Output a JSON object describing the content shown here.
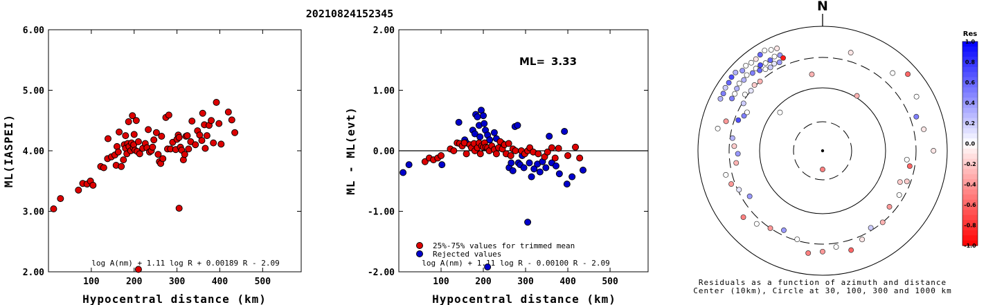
{
  "title": "20210824152345",
  "colors": {
    "accepted": "#dd0000",
    "rejected": "#0000cc",
    "edge": "#000000"
  },
  "chart_data": [
    {
      "type": "scatter",
      "xlabel": "Hypocentral distance (km)",
      "ylabel": "ML(IASPEI)",
      "xlim": [
        0,
        590
      ],
      "ylim": [
        2.0,
        6.0
      ],
      "xticks": [
        "100",
        "200",
        "300",
        "400",
        "500"
      ],
      "yticks": [
        "2.00",
        "3.00",
        "4.00",
        "5.00",
        "6.00"
      ],
      "formula": "log A(nm) + 1.11 log R + 0.00189 R - 2.09",
      "points": [
        [
          12,
          3.04
        ],
        [
          28,
          3.21
        ],
        [
          70,
          3.35
        ],
        [
          80,
          3.46
        ],
        [
          90,
          3.45
        ],
        [
          98,
          3.5
        ],
        [
          104,
          3.43
        ],
        [
          122,
          3.74
        ],
        [
          129,
          3.72
        ],
        [
          138,
          3.87
        ],
        [
          139,
          4.2
        ],
        [
          147,
          3.9
        ],
        [
          155,
          3.93
        ],
        [
          158,
          3.76
        ],
        [
          160,
          4.07
        ],
        [
          163,
          3.98
        ],
        [
          165,
          4.31
        ],
        [
          170,
          3.74
        ],
        [
          175,
          3.85
        ],
        [
          177,
          4.1
        ],
        [
          180,
          4.04
        ],
        [
          180,
          4.25
        ],
        [
          183,
          3.95
        ],
        [
          185,
          4.12
        ],
        [
          187,
          4.48
        ],
        [
          188,
          4.07
        ],
        [
          192,
          4.0
        ],
        [
          194,
          4.13
        ],
        [
          196,
          4.58
        ],
        [
          198,
          4.05
        ],
        [
          199,
          4.1
        ],
        [
          200,
          4.27
        ],
        [
          202,
          4.01
        ],
        [
          205,
          4.5
        ],
        [
          207,
          3.99
        ],
        [
          210,
          4.15
        ],
        [
          213,
          3.95
        ],
        [
          220,
          4.04
        ],
        [
          226,
          4.12
        ],
        [
          230,
          4.05
        ],
        [
          233,
          4.35
        ],
        [
          236,
          3.98
        ],
        [
          240,
          4.0
        ],
        [
          243,
          4.06
        ],
        [
          246,
          4.18
        ],
        [
          252,
          4.3
        ],
        [
          256,
          3.94
        ],
        [
          259,
          3.82
        ],
        [
          262,
          3.79
        ],
        [
          264,
          4.24
        ],
        [
          267,
          3.87
        ],
        [
          274,
          4.55
        ],
        [
          278,
          4.03
        ],
        [
          281,
          4.59
        ],
        [
          285,
          4.03
        ],
        [
          290,
          4.14
        ],
        [
          297,
          4.02
        ],
        [
          300,
          4.19
        ],
        [
          303,
          4.26
        ],
        [
          305,
          4.22
        ],
        [
          308,
          4.06
        ],
        [
          311,
          4.01
        ],
        [
          315,
          3.85
        ],
        [
          318,
          3.94
        ],
        [
          321,
          4.24
        ],
        [
          324,
          4.25
        ],
        [
          327,
          4.03
        ],
        [
          332,
          4.15
        ],
        [
          335,
          4.49
        ],
        [
          343,
          4.1
        ],
        [
          348,
          4.33
        ],
        [
          353,
          4.26
        ],
        [
          358,
          4.17
        ],
        [
          360,
          4.62
        ],
        [
          364,
          4.43
        ],
        [
          366,
          4.04
        ],
        [
          370,
          4.25
        ],
        [
          375,
          4.42
        ],
        [
          380,
          4.5
        ],
        [
          385,
          4.13
        ],
        [
          392,
          4.8
        ],
        [
          398,
          4.45
        ],
        [
          403,
          4.11
        ],
        [
          420,
          4.64
        ],
        [
          428,
          4.51
        ],
        [
          435,
          4.3
        ],
        [
          305,
          3.05
        ],
        [
          210,
          2.04
        ]
      ]
    },
    {
      "type": "scatter",
      "xlabel": "Hypocentral distance (km)",
      "ylabel": "ML - ML(evt)",
      "xlim": [
        0,
        590
      ],
      "ylim": [
        -2.0,
        2.0
      ],
      "xticks": [
        "100",
        "200",
        "300",
        "400",
        "500"
      ],
      "yticks": [
        "-2.00",
        "-1.00",
        "0.00",
        "1.00",
        "2.00"
      ],
      "ml_label": "ML=",
      "ml_value": "3.33",
      "formula": "log A(nm) + 1.11 log R - 0.00100 R - 2.09",
      "legend": [
        "25%-75% values for trimmed mean",
        "Rejected values"
      ],
      "accepted": [
        [
          62,
          -0.18
        ],
        [
          72,
          -0.12
        ],
        [
          82,
          -0.15
        ],
        [
          92,
          -0.12
        ],
        [
          100,
          -0.08
        ],
        [
          122,
          0.03
        ],
        [
          130,
          0.0
        ],
        [
          138,
          0.13
        ],
        [
          144,
          0.12
        ],
        [
          150,
          0.08
        ],
        [
          155,
          0.13
        ],
        [
          160,
          -0.05
        ],
        [
          168,
          0.1
        ],
        [
          172,
          0.05
        ],
        [
          178,
          0.12
        ],
        [
          180,
          0.0
        ],
        [
          186,
          0.05
        ],
        [
          190,
          0.13
        ],
        [
          193,
          -0.05
        ],
        [
          196,
          0.08
        ],
        [
          200,
          0.06
        ],
        [
          203,
          0.13
        ],
        [
          206,
          0.06
        ],
        [
          210,
          0.05
        ],
        [
          214,
          0.0
        ],
        [
          220,
          0.08
        ],
        [
          226,
          0.02
        ],
        [
          231,
          -0.05
        ],
        [
          236,
          0.05
        ],
        [
          240,
          0.15
        ],
        [
          245,
          0.03
        ],
        [
          250,
          0.1
        ],
        [
          254,
          -0.05
        ],
        [
          260,
          0.12
        ],
        [
          265,
          -0.08
        ],
        [
          270,
          0.03
        ],
        [
          276,
          0.0
        ],
        [
          290,
          0.0
        ],
        [
          298,
          -0.05
        ],
        [
          305,
          0.0
        ],
        [
          310,
          0.05
        ],
        [
          318,
          -0.02
        ],
        [
          330,
          -0.05
        ],
        [
          345,
          -0.1
        ],
        [
          352,
          -0.02
        ],
        [
          362,
          0.05
        ],
        [
          370,
          -0.12
        ],
        [
          378,
          0.04
        ],
        [
          400,
          -0.08
        ],
        [
          418,
          0.06
        ],
        [
          428,
          -0.12
        ]
      ],
      "rejected": [
        [
          10,
          -0.36
        ],
        [
          24,
          -0.23
        ],
        [
          102,
          -0.23
        ],
        [
          142,
          0.47
        ],
        [
          156,
          0.18
        ],
        [
          160,
          0.13
        ],
        [
          175,
          0.34
        ],
        [
          180,
          0.28
        ],
        [
          182,
          0.6
        ],
        [
          186,
          0.56
        ],
        [
          190,
          0.42
        ],
        [
          192,
          0.23
        ],
        [
          195,
          0.67
        ],
        [
          200,
          0.58
        ],
        [
          202,
          0.45
        ],
        [
          205,
          0.34
        ],
        [
          210,
          0.26
        ],
        [
          215,
          0.18
        ],
        [
          226,
          0.3
        ],
        [
          231,
          0.2
        ],
        [
          245,
          0.12
        ],
        [
          261,
          -0.28
        ],
        [
          266,
          -0.2
        ],
        [
          270,
          -0.33
        ],
        [
          275,
          0.4
        ],
        [
          281,
          0.42
        ],
        [
          283,
          -0.2
        ],
        [
          287,
          -0.23
        ],
        [
          292,
          -0.08
        ],
        [
          296,
          -0.28
        ],
        [
          305,
          -1.18
        ],
        [
          309,
          -0.2
        ],
        [
          314,
          -0.43
        ],
        [
          320,
          -0.3
        ],
        [
          328,
          -0.22
        ],
        [
          334,
          -0.35
        ],
        [
          340,
          -0.18
        ],
        [
          348,
          -0.28
        ],
        [
          356,
          0.24
        ],
        [
          362,
          -0.2
        ],
        [
          372,
          -0.25
        ],
        [
          380,
          -0.38
        ],
        [
          392,
          0.32
        ],
        [
          398,
          -0.55
        ],
        [
          410,
          -0.43
        ],
        [
          436,
          -0.32
        ],
        [
          210,
          -1.92
        ]
      ]
    },
    {
      "type": "scatter",
      "projection": "polar-azimuth-distance",
      "north_label": "N",
      "caption_line1": "Residuals as a function of azimuth and distance",
      "caption_line2": "Center (10km), Circle at 30, 100, 300 and 1000 km",
      "colorbar": {
        "title": "Res",
        "ticks": [
          "1.0",
          "0.8",
          "0.6",
          "0.4",
          "0.2",
          "0.0",
          "-0.2",
          "-0.4",
          "-0.6",
          "-0.8",
          "-1.0"
        ]
      },
      "stations": [
        [
          297,
          0.92,
          0.3
        ],
        [
          300,
          0.92,
          0.5
        ],
        [
          303,
          0.93,
          0.2
        ],
        [
          306,
          0.93,
          0.6
        ],
        [
          309,
          0.94,
          0.7
        ],
        [
          312,
          0.94,
          0.3
        ],
        [
          315,
          0.91,
          0.4
        ],
        [
          318,
          0.92,
          0.0
        ],
        [
          321,
          0.91,
          0.0
        ],
        [
          324,
          0.91,
          -0.1
        ],
        [
          327,
          0.92,
          0.6
        ],
        [
          330,
          0.93,
          0.0
        ],
        [
          333,
          0.91,
          0.0
        ],
        [
          336,
          0.9,
          -0.1
        ],
        [
          300,
          0.84,
          0.5
        ],
        [
          303,
          0.84,
          0.0
        ],
        [
          306,
          0.85,
          0.3
        ],
        [
          309,
          0.86,
          0.0
        ],
        [
          312,
          0.85,
          0.3
        ],
        [
          315,
          0.86,
          0.0
        ],
        [
          318,
          0.84,
          0.5
        ],
        [
          321,
          0.85,
          0.0
        ],
        [
          324,
          0.85,
          0.7
        ],
        [
          327,
          0.84,
          0.0
        ],
        [
          330,
          0.84,
          0.6
        ],
        [
          333,
          0.85,
          0.0
        ],
        [
          336,
          0.84,
          0.4
        ],
        [
          322,
          0.82,
          0.6
        ],
        [
          325,
          0.8,
          0.0
        ],
        [
          328,
          0.79,
          0.2
        ],
        [
          331,
          0.8,
          0.1
        ],
        [
          334,
          0.79,
          0.4
        ],
        [
          337,
          0.81,
          -0.9
        ],
        [
          306,
          0.77,
          0.0
        ],
        [
          310,
          0.75,
          0.1
        ],
        [
          314,
          0.76,
          -0.2
        ],
        [
          318,
          0.75,
          -0.3
        ],
        [
          290,
          0.72,
          0.7
        ],
        [
          294,
          0.69,
          0.5
        ],
        [
          297,
          0.68,
          0.0
        ],
        [
          301,
          0.74,
          0.2
        ],
        [
          287,
          0.81,
          -0.4
        ],
        [
          282,
          0.86,
          0.0
        ],
        [
          278,
          0.73,
          0.3
        ],
        [
          273,
          0.71,
          -0.2
        ],
        [
          268,
          0.68,
          0.4
        ],
        [
          262,
          0.7,
          -0.3
        ],
        [
          256,
          0.8,
          0.0
        ],
        [
          250,
          0.78,
          -0.4
        ],
        [
          245,
          0.74,
          0.1
        ],
        [
          238,
          0.69,
          0.4
        ],
        [
          230,
          0.83,
          -0.5
        ],
        [
          222,
          0.79,
          0.0
        ],
        [
          214,
          0.75,
          -0.4
        ],
        [
          206,
          0.71,
          0.4
        ],
        [
          196,
          0.74,
          0.0
        ],
        [
          188,
          0.83,
          -0.5
        ],
        [
          180,
          0.81,
          -0.4
        ],
        [
          172,
          0.78,
          0.0
        ],
        [
          164,
          0.83,
          -0.6
        ],
        [
          156,
          0.78,
          -0.1
        ],
        [
          148,
          0.73,
          0.2
        ],
        [
          140,
          0.75,
          -0.3
        ],
        [
          130,
          0.7,
          -0.4
        ],
        [
          120,
          0.71,
          0.0
        ],
        [
          112,
          0.67,
          -0.2
        ],
        [
          100,
          0.71,
          -0.6
        ],
        [
          90,
          0.89,
          -0.1
        ],
        [
          78,
          0.83,
          -0.1
        ],
        [
          70,
          0.8,
          0.5
        ],
        [
          60,
          0.87,
          0.0
        ],
        [
          48,
          0.92,
          -0.6
        ],
        [
          42,
          0.84,
          0.0
        ],
        [
          16,
          0.82,
          -0.1
        ],
        [
          110,
          0.72,
          -0.2
        ],
        [
          180,
          0.15,
          -0.5
        ],
        [
          32,
          0.52,
          -0.3
        ],
        [
          312,
          0.46,
          0.0
        ],
        [
          352,
          0.62,
          -0.3
        ],
        [
          96,
          0.68,
          0.0
        ]
      ]
    }
  ]
}
